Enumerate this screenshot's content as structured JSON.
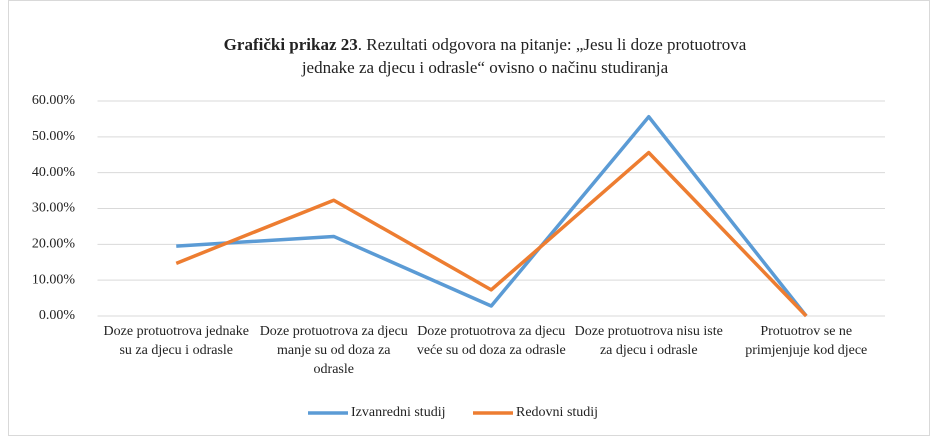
{
  "chart_data": {
    "type": "line",
    "title": [
      "Grafički prikaz 23",
      ". Rezultati odgovora na pitanje: „Jesu li doze protuotrova",
      "jednake za djecu i odrasle“ ovisno o načinu studiranja"
    ],
    "categories": [
      "Doze protuotrova jednake su za djecu i odrasle",
      "Doze protuotrova za djecu manje su od doza za odrasle",
      "Doze protuotrova za djecu veće su od doza za odrasle",
      "Doze protuotrova nisu iste za djecu i odrasle",
      "Protuotrov se ne primjenjuje kod djece"
    ],
    "series": [
      {
        "name": "Izvanredni studij",
        "color": "#5b9bd5",
        "values": [
          19.5,
          22.2,
          2.8,
          55.6,
          0
        ]
      },
      {
        "name": "Redovni studij",
        "color": "#ed7d31",
        "values": [
          14.7,
          32.3,
          7.3,
          45.6,
          0
        ]
      }
    ],
    "ylim": [
      0,
      60
    ],
    "yticks": [
      {
        "value": 0,
        "label": "0.00%"
      },
      {
        "value": 10,
        "label": "10.00%"
      },
      {
        "value": 20,
        "label": "20.00%"
      },
      {
        "value": 30,
        "label": "30.00%"
      },
      {
        "value": 40,
        "label": "40.00%"
      },
      {
        "value": 50,
        "label": "50.00%"
      },
      {
        "value": 60,
        "label": "60.00%"
      }
    ],
    "grid": true,
    "legend": "bottom"
  }
}
